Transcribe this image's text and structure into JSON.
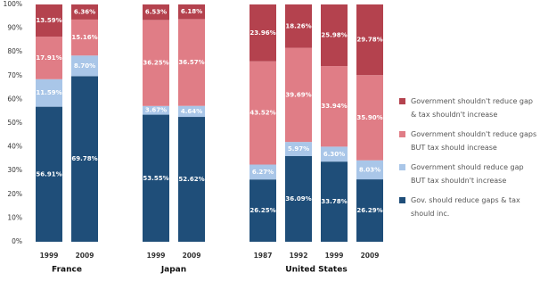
{
  "chart_data": {
    "type": "stacked_bar",
    "groups": [
      {
        "name": "France",
        "categories": [
          "1999",
          "2009"
        ]
      },
      {
        "name": "Japan",
        "categories": [
          "1999",
          "2009"
        ]
      },
      {
        "name": "United States",
        "categories": [
          "1987",
          "1992",
          "1999",
          "2009"
        ]
      }
    ],
    "series": [
      {
        "name": "Gov. should reduce gaps & tax should inc.",
        "color": "#1f4e79",
        "values": [
          56.91,
          69.78,
          53.55,
          52.62,
          26.25,
          36.09,
          33.78,
          26.29
        ],
        "value_labels": [
          "56.91%",
          "69.78%",
          "53.55%",
          "52.62%",
          "26.25%",
          "36.09%",
          "33.78%",
          "26.29%"
        ]
      },
      {
        "name": "Government should reduce gap BUT tax shouldn't increase",
        "color": "#a9c6e8",
        "values": [
          11.59,
          8.7,
          3.67,
          4.64,
          6.27,
          5.97,
          6.3,
          8.03
        ],
        "value_labels": [
          "11.59%",
          "8.70%",
          "3.67%",
          "4.64%",
          "6.27%",
          "5.97%",
          "6.30%",
          "8.03%"
        ]
      },
      {
        "name": "Government shouldn't reduce gaps BUT tax should increase",
        "color": "#e07d86",
        "values": [
          17.91,
          15.16,
          36.25,
          36.57,
          43.52,
          39.69,
          33.94,
          35.9
        ],
        "value_labels": [
          "17.91%",
          "15.16%",
          "36.25%",
          "36.57%",
          "43.52%",
          "39.69%",
          "33.94%",
          "35.90%"
        ]
      },
      {
        "name": "Government shouldn't reduce gap & tax shouldn't increase",
        "color": "#b4424e",
        "values": [
          13.59,
          6.36,
          6.53,
          6.18,
          23.96,
          18.26,
          25.98,
          29.78
        ],
        "value_labels": [
          "13.59%",
          "6.36%",
          "6.53%",
          "6.18%",
          "23.96%",
          "18.26%",
          "25.98%",
          "29.78%"
        ]
      }
    ],
    "ylim": [
      0,
      100
    ],
    "yticks": [
      {
        "value": 0,
        "label": "0%"
      },
      {
        "value": 10,
        "label": "10%"
      },
      {
        "value": 20,
        "label": "20%"
      },
      {
        "value": 30,
        "label": "30%"
      },
      {
        "value": 40,
        "label": "40%"
      },
      {
        "value": 50,
        "label": "50%"
      },
      {
        "value": 60,
        "label": "60%"
      },
      {
        "value": 70,
        "label": "70%"
      },
      {
        "value": 80,
        "label": "80%"
      },
      {
        "value": 90,
        "label": "90%"
      },
      {
        "value": 100,
        "label": "100%"
      }
    ]
  }
}
